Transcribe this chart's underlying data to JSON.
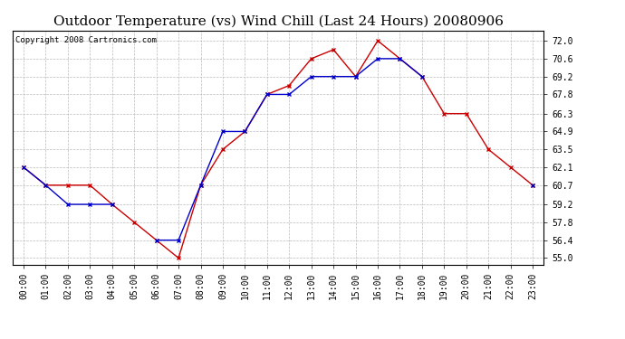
{
  "title": "Outdoor Temperature (vs) Wind Chill (Last 24 Hours) 20080906",
  "copyright": "Copyright 2008 Cartronics.com",
  "x_labels": [
    "00:00",
    "01:00",
    "02:00",
    "03:00",
    "04:00",
    "05:00",
    "06:00",
    "07:00",
    "08:00",
    "09:00",
    "10:00",
    "11:00",
    "12:00",
    "13:00",
    "14:00",
    "15:00",
    "16:00",
    "17:00",
    "18:00",
    "19:00",
    "20:00",
    "21:00",
    "22:00",
    "23:00"
  ],
  "y_ticks": [
    55.0,
    56.4,
    57.8,
    59.2,
    60.7,
    62.1,
    63.5,
    64.9,
    66.3,
    67.8,
    69.2,
    70.6,
    72.0
  ],
  "ylim": [
    54.5,
    72.8
  ],
  "red_data": [
    62.1,
    60.7,
    60.7,
    60.7,
    59.2,
    57.8,
    56.4,
    55.0,
    60.7,
    63.5,
    64.9,
    67.8,
    68.5,
    70.6,
    71.3,
    69.2,
    72.0,
    70.6,
    69.2,
    66.3,
    66.3,
    63.5,
    62.1,
    60.7
  ],
  "blue_data": [
    62.1,
    60.7,
    59.2,
    59.2,
    59.2,
    null,
    56.4,
    56.4,
    60.7,
    64.9,
    64.9,
    67.8,
    67.8,
    69.2,
    69.2,
    69.2,
    70.6,
    70.6,
    69.2,
    null,
    null,
    null,
    null,
    60.7
  ],
  "red_color": "#cc0000",
  "blue_color": "#0000cc",
  "bg_color": "#ffffff",
  "grid_color": "#bbbbbb",
  "title_fontsize": 11,
  "copyright_fontsize": 6.5,
  "tick_fontsize": 7,
  "marker_size": 3.5,
  "line_width": 1.0
}
